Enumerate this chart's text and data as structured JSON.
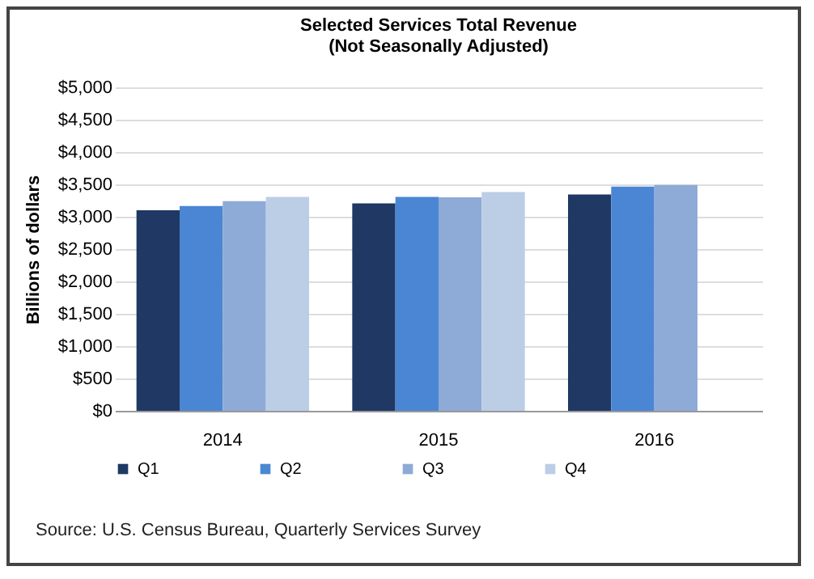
{
  "chart_data": {
    "type": "bar",
    "title": "Selected Services Total Revenue",
    "subtitle": "(Not Seasonally Adjusted)",
    "ylabel": "Billions of dollars",
    "categories": [
      "2014",
      "2015",
      "2016"
    ],
    "series": [
      {
        "name": "Q1",
        "color": "#1f3864",
        "values": [
          3100,
          3205,
          3345
        ]
      },
      {
        "name": "Q2",
        "color": "#4a86d4",
        "values": [
          3165,
          3305,
          3465
        ]
      },
      {
        "name": "Q3",
        "color": "#8eaad6",
        "values": [
          3240,
          3300,
          3490
        ]
      },
      {
        "name": "Q4",
        "color": "#bccde6",
        "values": [
          3305,
          3380,
          null
        ]
      }
    ],
    "ylim": [
      0,
      5000
    ],
    "yticks": [
      {
        "value": 0,
        "label": "$0"
      },
      {
        "value": 500,
        "label": "$500"
      },
      {
        "value": 1000,
        "label": "$1,000"
      },
      {
        "value": 1500,
        "label": "$1,500"
      },
      {
        "value": 2000,
        "label": "$2,000"
      },
      {
        "value": 2500,
        "label": "$2,500"
      },
      {
        "value": 3000,
        "label": "$3,000"
      },
      {
        "value": 3500,
        "label": "$3,500"
      },
      {
        "value": 4000,
        "label": "$4,000"
      },
      {
        "value": 4500,
        "label": "$4,500"
      },
      {
        "value": 5000,
        "label": "$5,000"
      }
    ],
    "grid": "y",
    "legend": "bottom",
    "annotations": [
      "Source:  U.S. Census Bureau, Quarterly  Services  Survey"
    ]
  }
}
